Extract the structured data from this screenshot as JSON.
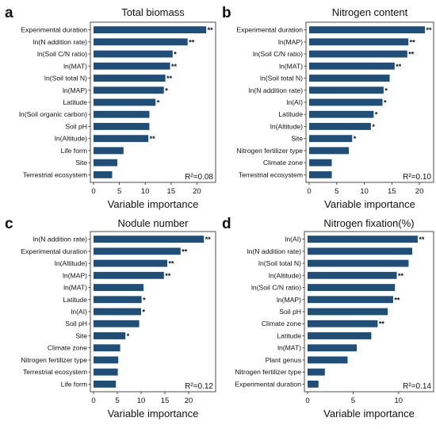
{
  "chart_data": [
    {
      "type": "bar",
      "orientation": "horizontal",
      "panel": "a",
      "title": "Total biomass",
      "xlabel": "Variable importance",
      "xticks": [
        0,
        5,
        10,
        15,
        20
      ],
      "xlim": [
        0,
        23
      ],
      "annotation": "R²=0.08",
      "color": "#1f4e79",
      "categories": [
        "Experimental duration",
        "ln(N addition rate)",
        "ln(Soil C/N ratio)",
        "ln(MAT)",
        "ln(Soil total N)",
        "ln(MAP)",
        "Latitude",
        "ln(Soil organic carbon)",
        "Soil pH",
        "ln(Altitude)",
        "Life form",
        "Site",
        "Terrestrial ecosystem"
      ],
      "values": [
        21.8,
        18.2,
        15.3,
        14.8,
        13.9,
        13.6,
        12.0,
        10.8,
        10.8,
        10.6,
        5.8,
        4.6,
        3.6
      ],
      "significance": [
        "**",
        "**",
        "*",
        "**",
        "**",
        "*",
        "*",
        "",
        "",
        "**",
        "",
        "",
        ""
      ]
    },
    {
      "type": "bar",
      "orientation": "horizontal",
      "panel": "b",
      "title": "Nitrogen content",
      "xlabel": "Variable importance",
      "xticks": [
        0,
        5,
        10,
        15,
        20
      ],
      "xlim": [
        0,
        22
      ],
      "annotation": "R²=0.10",
      "color": "#1f4e79",
      "categories": [
        "Experimental duration",
        "ln(MAP)",
        "ln(Soil C/N ratio)",
        "ln(MAT)",
        "ln(Soil total N)",
        "ln(N addition rate)",
        "ln(AI)",
        "Latitude",
        "ln(Altitude)",
        "Site",
        "Nitrogen fertilizer type",
        "Climate zone",
        "Terrestrial ecosystem"
      ],
      "values": [
        21.0,
        18.0,
        17.8,
        15.5,
        14.6,
        13.5,
        13.3,
        11.7,
        11.2,
        7.8,
        7.2,
        4.1,
        4.1
      ],
      "significance": [
        "**",
        "**",
        "**",
        "**",
        "",
        "*",
        "*",
        "*",
        "*",
        "*",
        "",
        "",
        ""
      ]
    },
    {
      "type": "bar",
      "orientation": "horizontal",
      "panel": "c",
      "title": "Nodule number",
      "xlabel": "Variable importance",
      "xticks": [
        0,
        5,
        10,
        15,
        20
      ],
      "xlim": [
        0,
        25
      ],
      "annotation": "R²=0.12",
      "color": "#1f4e79",
      "categories": [
        "ln(N addition rate)",
        "Experimental duration",
        "ln(Altitude)",
        "ln(MAP)",
        "ln(MAT)",
        "Latitude",
        "ln(AI)",
        "Soil pH",
        "Site",
        "Climate zone",
        "Nitrogen fertilizer type",
        "Terrestrial ecosystem",
        "Life form"
      ],
      "values": [
        23.2,
        18.3,
        15.5,
        14.8,
        10.5,
        10.1,
        10.0,
        9.6,
        6.7,
        5.6,
        5.2,
        5.1,
        4.7
      ],
      "significance": [
        "**",
        "**",
        "**",
        "**",
        "",
        "*",
        "*",
        "",
        "*",
        "",
        "",
        "",
        ""
      ]
    },
    {
      "type": "bar",
      "orientation": "horizontal",
      "panel": "d",
      "title": "Nitrogen fixation(%)",
      "xlabel": "Variable importance",
      "xticks": [
        0,
        5,
        10
      ],
      "xlim": [
        0,
        13.5
      ],
      "annotation": "R²=0.14",
      "color": "#1f4e79",
      "categories": [
        "ln(AI)",
        "ln(N addition rate)",
        "ln(Soil total N)",
        "ln(Altitude)",
        "ln(Soil C/N ratio)",
        "ln(MAP)",
        "Soil pH",
        "Climate zone",
        "Latitude",
        "ln(MAT)",
        "Plant genus",
        "Nitrogen fertilizer type",
        "Experimental duration"
      ],
      "values": [
        12.1,
        11.5,
        11.1,
        9.8,
        9.6,
        9.4,
        8.8,
        7.7,
        7.0,
        5.4,
        4.4,
        1.9,
        1.2
      ],
      "significance": [
        "**",
        "",
        "",
        "**",
        "",
        "**",
        "",
        "**",
        "",
        "",
        "",
        "",
        ""
      ]
    }
  ]
}
